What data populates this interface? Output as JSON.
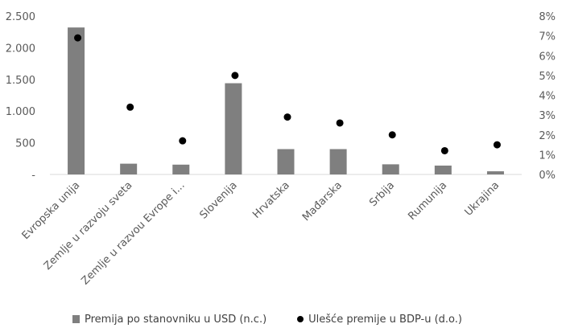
{
  "chart_data": {
    "type": "bar",
    "categories": [
      "Evropska unija",
      "Zemlje u razvoju sveta",
      "Zemlje u razvou Evrope i...",
      "Slovenija",
      "Hrvatska",
      "Mađarska",
      "Srbija",
      "Rumunija",
      "Ukrajina"
    ],
    "series": [
      {
        "name": "Premija po stanovniku u USD (n.c.)",
        "type": "bar",
        "axis": "left",
        "color": "#7f7f7f",
        "values": [
          2320,
          170,
          155,
          1440,
          400,
          400,
          160,
          140,
          50
        ]
      },
      {
        "name": "Ulešće premije u BDP-u (d.o.)",
        "type": "scatter",
        "axis": "right",
        "color": "#000000",
        "values": [
          6.9,
          3.4,
          1.7,
          5.0,
          2.9,
          2.6,
          2.0,
          1.2,
          1.5
        ]
      }
    ],
    "y_left": {
      "min": 0,
      "max": 2500,
      "ticks": [
        "-",
        "500",
        "1.000",
        "1.500",
        "2.000",
        "2.500"
      ],
      "tick_values": [
        0,
        500,
        1000,
        1500,
        2000,
        2500
      ]
    },
    "y_right": {
      "min": 0,
      "max": 8,
      "ticks": [
        "0%",
        "1%",
        "2%",
        "3%",
        "4%",
        "5%",
        "6%",
        "7%",
        "8%"
      ],
      "tick_values": [
        0,
        1,
        2,
        3,
        4,
        5,
        6,
        7,
        8
      ]
    },
    "grid": false,
    "legend_position": "bottom"
  }
}
